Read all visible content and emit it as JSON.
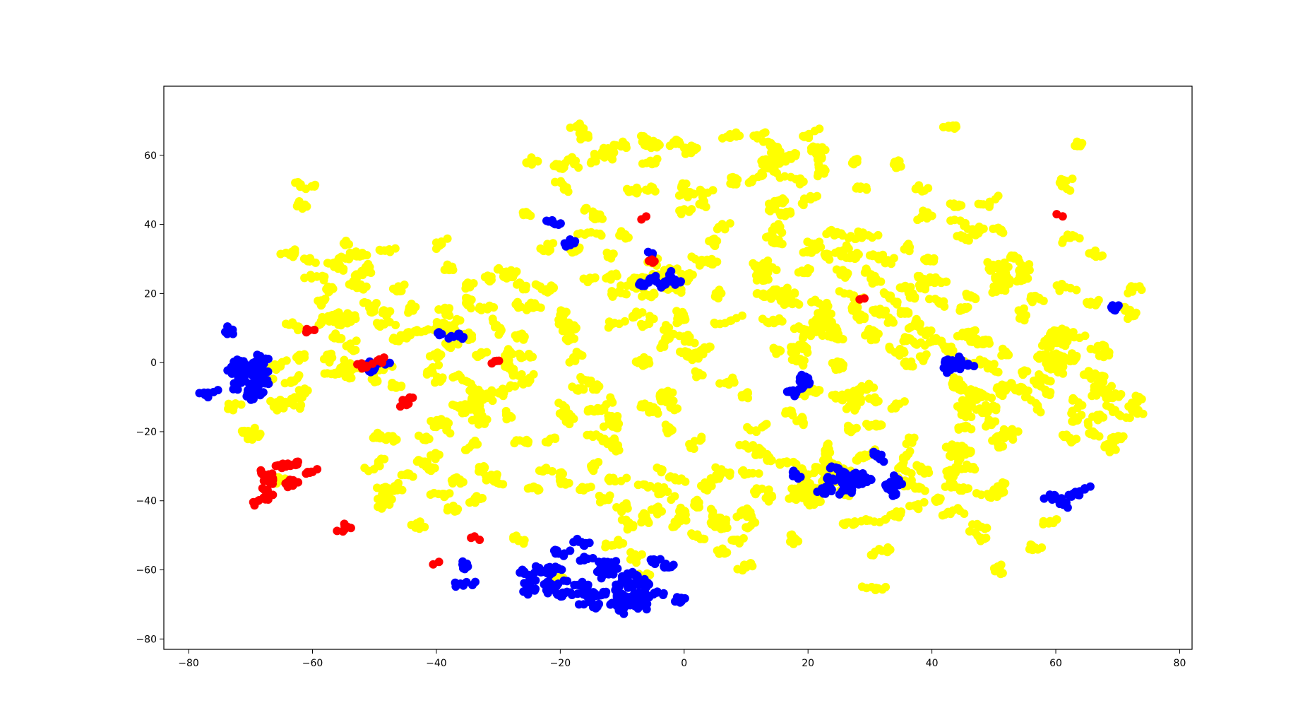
{
  "chart_data": {
    "type": "scatter",
    "title": "",
    "xlabel": "",
    "ylabel": "",
    "xlim": [
      -84,
      82
    ],
    "ylim": [
      -83,
      80
    ],
    "grid": false,
    "legend": "none",
    "x_ticks": [
      -80,
      -60,
      -40,
      -20,
      0,
      20,
      40,
      60,
      80
    ],
    "y_ticks": [
      -80,
      -60,
      -40,
      -20,
      0,
      20,
      40,
      60
    ],
    "x_tick_labels": [
      "−80",
      "−60",
      "−40",
      "−20",
      "0",
      "20",
      "40",
      "60",
      "80"
    ],
    "y_tick_labels": [
      "−80",
      "−60",
      "−40",
      "−20",
      "0",
      "20",
      "40",
      "60"
    ],
    "series": [
      {
        "color": "#ffff00",
        "clusters": [
          {
            "cx": -5,
            "cy": 10,
            "rx": 40,
            "ry": 48,
            "n": 900
          },
          {
            "cx": 30,
            "cy": 20,
            "rx": 32,
            "ry": 42,
            "n": 700
          },
          {
            "cx": -40,
            "cy": 5,
            "rx": 22,
            "ry": 40,
            "n": 420
          },
          {
            "cx": 50,
            "cy": -5,
            "rx": 22,
            "ry": 35,
            "n": 380
          },
          {
            "cx": 10,
            "cy": -40,
            "rx": 40,
            "ry": 22,
            "n": 420
          },
          {
            "cx": -30,
            "cy": -30,
            "rx": 22,
            "ry": 22,
            "n": 250
          },
          {
            "cx": 60,
            "cy": 10,
            "rx": 15,
            "ry": 25,
            "n": 200
          },
          {
            "cx": 5,
            "cy": 60,
            "rx": 35,
            "ry": 10,
            "n": 260
          },
          {
            "cx": -55,
            "cy": 15,
            "rx": 12,
            "ry": 25,
            "n": 180
          },
          {
            "cx": 40,
            "cy": -35,
            "rx": 20,
            "ry": 20,
            "n": 220
          },
          {
            "cx": 65,
            "cy": -15,
            "rx": 10,
            "ry": 10,
            "n": 90
          },
          {
            "cx": -65,
            "cy": -15,
            "rx": 8,
            "ry": 12,
            "n": 80
          }
        ]
      },
      {
        "color": "#0000ff",
        "clusters": [
          {
            "cx": -70,
            "cy": -5,
            "rx": 5,
            "ry": 8,
            "n": 140
          },
          {
            "cx": -20,
            "cy": -62,
            "rx": 18,
            "ry": 6,
            "n": 180
          },
          {
            "cx": -10,
            "cy": -68,
            "rx": 8,
            "ry": 5,
            "n": 130
          },
          {
            "cx": 27,
            "cy": -33,
            "rx": 7,
            "ry": 7,
            "n": 120
          },
          {
            "cx": 63,
            "cy": -38,
            "rx": 3,
            "ry": 5,
            "n": 30
          },
          {
            "cx": 43,
            "cy": -2,
            "rx": 3,
            "ry": 2,
            "n": 30
          },
          {
            "cx": -51,
            "cy": -1,
            "rx": 3,
            "ry": 3,
            "n": 25
          },
          {
            "cx": -5,
            "cy": 25,
            "rx": 5,
            "ry": 6,
            "n": 35
          },
          {
            "cx": 20,
            "cy": -7,
            "rx": 3,
            "ry": 2,
            "n": 20
          },
          {
            "cx": -20,
            "cy": 40,
            "rx": 2,
            "ry": 4,
            "n": 15
          },
          {
            "cx": 69,
            "cy": 17,
            "rx": 2,
            "ry": 2,
            "n": 10
          },
          {
            "cx": -38,
            "cy": 8,
            "rx": 3,
            "ry": 2,
            "n": 12
          }
        ]
      },
      {
        "color": "#ff0000",
        "clusters": [
          {
            "cx": -65,
            "cy": -35,
            "rx": 6,
            "ry": 6,
            "n": 70
          },
          {
            "cx": -57,
            "cy": -47,
            "rx": 1,
            "ry": 3,
            "n": 8
          },
          {
            "cx": -51,
            "cy": -1,
            "rx": 2,
            "ry": 3,
            "n": 15
          },
          {
            "cx": -44,
            "cy": -11,
            "rx": 2,
            "ry": 2,
            "n": 12
          },
          {
            "cx": -60,
            "cy": 9,
            "rx": 1,
            "ry": 1,
            "n": 6
          },
          {
            "cx": -31,
            "cy": 0,
            "rx": 1,
            "ry": 1,
            "n": 4
          },
          {
            "cx": -6,
            "cy": 29,
            "rx": 1,
            "ry": 1,
            "n": 4
          },
          {
            "cx": -7,
            "cy": 42,
            "rx": 0.5,
            "ry": 0.5,
            "n": 2
          },
          {
            "cx": 60,
            "cy": 43,
            "rx": 0.5,
            "ry": 0.5,
            "n": 2
          },
          {
            "cx": 29,
            "cy": 19,
            "rx": 0.5,
            "ry": 0.5,
            "n": 2
          },
          {
            "cx": -33,
            "cy": -51,
            "rx": 1,
            "ry": 0.5,
            "n": 3
          },
          {
            "cx": -40,
            "cy": -59,
            "rx": 0.5,
            "ry": 0.5,
            "n": 2
          }
        ]
      }
    ]
  }
}
